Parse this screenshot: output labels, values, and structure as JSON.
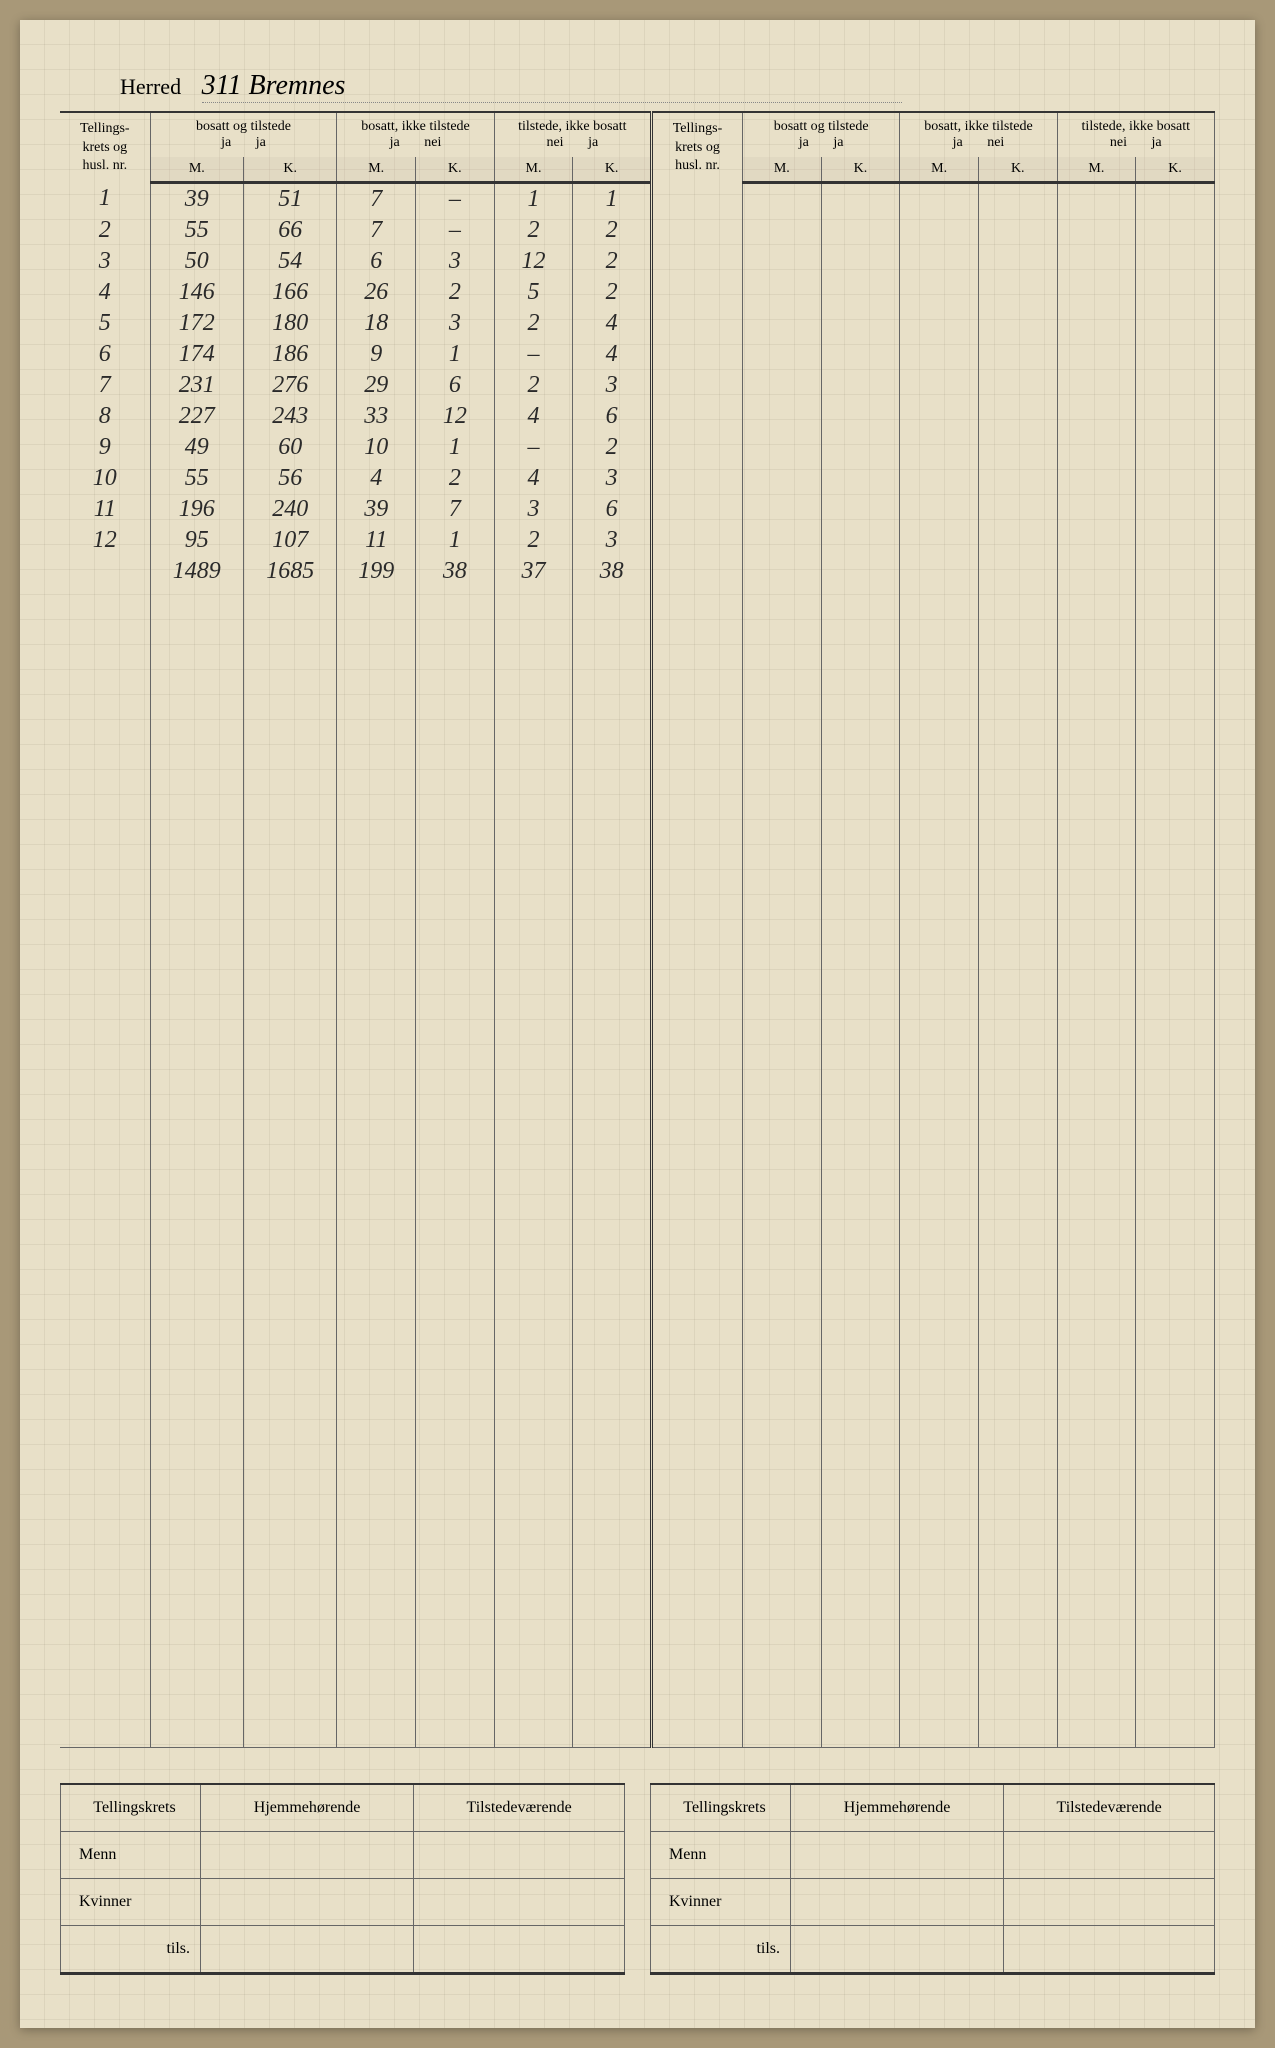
{
  "header": {
    "label": "Herred",
    "value": "311   Bremnes"
  },
  "columns": {
    "index_label_1": "Tellings-",
    "index_label_2": "krets og",
    "index_label_3": "husl. nr.",
    "group_1": "bosatt og tilstede",
    "group_2": "bosatt, ikke tilstede",
    "group_3": "tilstede, ikke bosatt",
    "sub_ja": "ja",
    "sub_nei": "nei",
    "sub_M": "M.",
    "sub_K": "K."
  },
  "rows": [
    {
      "n": "1",
      "a": "39",
      "b": "51",
      "c": "7",
      "d": "–",
      "e": "1",
      "f": "1"
    },
    {
      "n": "2",
      "a": "55",
      "b": "66",
      "c": "7",
      "d": "–",
      "e": "2",
      "f": "2"
    },
    {
      "n": "3",
      "a": "50",
      "b": "54",
      "c": "6",
      "d": "3",
      "e": "12",
      "f": "2"
    },
    {
      "n": "4",
      "a": "146",
      "b": "166",
      "c": "26",
      "d": "2",
      "e": "5",
      "f": "2"
    },
    {
      "n": "5",
      "a": "172",
      "b": "180",
      "c": "18",
      "d": "3",
      "e": "2",
      "f": "4"
    },
    {
      "n": "6",
      "a": "174",
      "b": "186",
      "c": "9",
      "d": "1",
      "e": "–",
      "f": "4"
    },
    {
      "n": "7",
      "a": "231",
      "b": "276",
      "c": "29",
      "d": "6",
      "e": "2",
      "f": "3"
    },
    {
      "n": "8",
      "a": "227",
      "b": "243",
      "c": "33",
      "d": "12",
      "e": "4",
      "f": "6"
    },
    {
      "n": "9",
      "a": "49",
      "b": "60",
      "c": "10",
      "d": "1",
      "e": "–",
      "f": "2"
    },
    {
      "n": "10",
      "a": "55",
      "b": "56",
      "c": "4",
      "d": "2",
      "e": "4",
      "f": "3"
    },
    {
      "n": "11",
      "a": "196",
      "b": "240",
      "c": "39",
      "d": "7",
      "e": "3",
      "f": "6"
    },
    {
      "n": "12",
      "a": "95",
      "b": "107",
      "c": "11",
      "d": "1",
      "e": "2",
      "f": "3"
    }
  ],
  "totals": {
    "a": "1489",
    "b": "1685",
    "c": "199",
    "d": "38",
    "e": "37",
    "f": "38"
  },
  "bottom": {
    "col1": "Tellingskrets",
    "col2": "Hjemmehørende",
    "col3": "Tilstedeværende",
    "row1": "Menn",
    "row2": "Kvinner",
    "row3": "tils."
  },
  "colors": {
    "paper": "#e8e0c8",
    "ink": "#2a2a2a",
    "rule": "#666666"
  }
}
